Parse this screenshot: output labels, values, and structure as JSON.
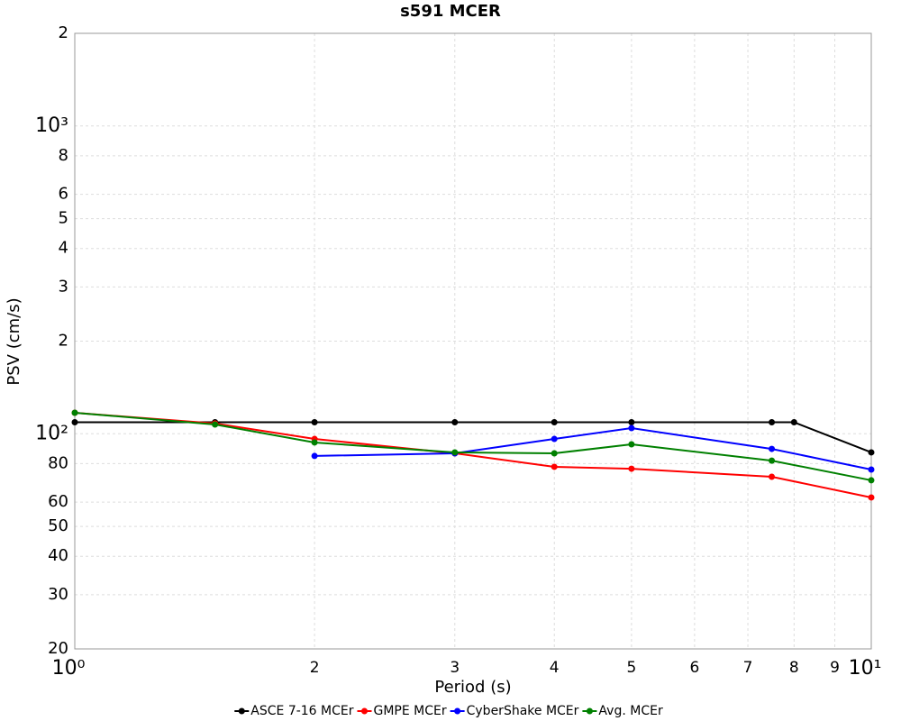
{
  "chart_data": {
    "type": "line",
    "title": "s591 MCER",
    "x_label": "Period (s)",
    "y_label": "PSV (cm/s)",
    "xscale": "log",
    "yscale": "log",
    "grid": true,
    "legend": "bottom",
    "xlim": [
      1,
      10
    ],
    "ylim": [
      20,
      2000
    ],
    "xticks": [
      {
        "value": 1,
        "label": "10⁰"
      },
      2,
      3,
      4,
      5,
      6,
      7,
      8,
      9,
      {
        "value": 10,
        "label": "10¹"
      }
    ],
    "yticks": [
      20,
      30,
      40,
      50,
      60,
      80,
      {
        "value": 100,
        "label": "10²"
      },
      {
        "value": 200,
        "label": "2"
      },
      {
        "value": 300,
        "label": "3"
      },
      {
        "value": 400,
        "label": "4"
      },
      {
        "value": 500,
        "label": "5"
      },
      {
        "value": 600,
        "label": "6"
      },
      {
        "value": 800,
        "label": "8"
      },
      {
        "value": 1000,
        "label": "10³"
      },
      {
        "value": 2000,
        "label": "2"
      }
    ],
    "series": [
      {
        "name": "ASCE 7-16 MCEr",
        "color": "#000000",
        "x": [
          1,
          1.5,
          2,
          3,
          4,
          5,
          7.5,
          8,
          10
        ],
        "values": [
          109,
          109,
          109,
          109,
          109,
          109,
          109,
          109,
          87
        ]
      },
      {
        "name": "GMPE MCEr",
        "color": "#ff0000",
        "x": [
          1,
          1.5,
          2,
          3,
          4,
          5,
          7.5,
          10
        ],
        "values": [
          117,
          108,
          96.2,
          86.4,
          78.1,
          77.0,
          72.5,
          62.1
        ]
      },
      {
        "name": "CyberShake MCEr",
        "color": "#0000ff",
        "x": [
          2,
          3,
          4,
          5,
          7.5,
          10
        ],
        "values": [
          84.7,
          86.4,
          96.2,
          104.3,
          89.3,
          76.5
        ]
      },
      {
        "name": "Avg. MCEr",
        "color": "#008000",
        "x": [
          1,
          1.5,
          2,
          3,
          4,
          5,
          7.5,
          10
        ],
        "values": [
          117,
          107.2,
          93.7,
          87.0,
          86.4,
          92.4,
          81.8,
          70.6
        ]
      }
    ]
  }
}
